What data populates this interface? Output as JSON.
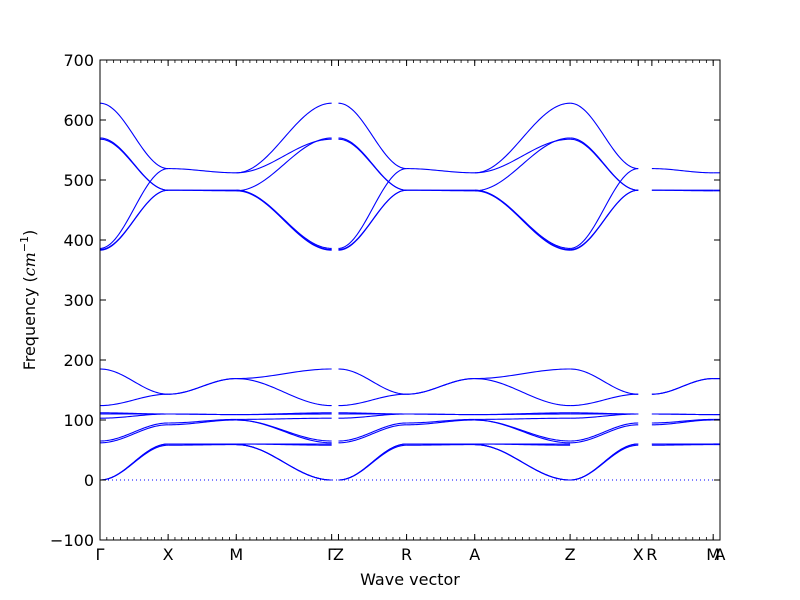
{
  "chart_data": {
    "type": "line",
    "title": "",
    "xlabel": "Wave vector",
    "ylabel_text": "Frequency (",
    "ylabel_unit": "cm",
    "ylabel_exp": "−1",
    "ylabel_close": ")",
    "ylim": [
      -100,
      700
    ],
    "yticks": [
      -100,
      0,
      100,
      200,
      300,
      400,
      500,
      600,
      700
    ],
    "xlim": [
      0,
      9.1
    ],
    "xticks": [
      {
        "label": "Γ",
        "x": 0
      },
      {
        "label": "X",
        "x": 1
      },
      {
        "label": "M",
        "x": 2
      },
      {
        "label": "Γ",
        "x": 3.4
      },
      {
        "label": "Z",
        "x": 3.5
      },
      {
        "label": "R",
        "x": 4.5
      },
      {
        "label": "A",
        "x": 5.5
      },
      {
        "label": "Z",
        "x": 6.9
      },
      {
        "label": "X",
        "x": 7.9
      },
      {
        "label": "R",
        "x": 8.1
      },
      {
        "label": "M",
        "x": 9
      },
      {
        "label": "A",
        "x": 9.1
      }
    ],
    "zero_line": {
      "y": 0,
      "style": "dotted",
      "color": "#0000ff"
    },
    "line_color": "#0000ff",
    "segments": [
      {
        "name": "Γ-X",
        "x0": 0,
        "x1": 1,
        "bands": [
          [
            628,
            519
          ],
          [
            570,
            483
          ],
          [
            568,
            483
          ],
          [
            386,
            519
          ],
          [
            384,
            483
          ],
          [
            383,
            483
          ],
          [
            185,
            143
          ],
          [
            124,
            143
          ],
          [
            112,
            110
          ],
          [
            110,
            110
          ],
          [
            103,
            110
          ],
          [
            65,
            95
          ],
          [
            62,
            92
          ],
          [
            0,
            60
          ],
          [
            0,
            60
          ],
          [
            0,
            58
          ]
        ],
        "shape": "cos"
      },
      {
        "name": "X-M",
        "x0": 1,
        "x1": 2,
        "bands": [
          [
            519,
            512
          ],
          [
            483,
            483
          ],
          [
            483,
            482
          ],
          [
            143,
            169
          ],
          [
            143,
            169
          ],
          [
            110,
            109
          ],
          [
            110,
            109
          ],
          [
            95,
            101
          ],
          [
            92,
            100
          ],
          [
            60,
            60
          ],
          [
            60,
            60
          ],
          [
            58,
            59
          ]
        ],
        "shape": "cos"
      },
      {
        "name": "M-Γ",
        "x0": 2,
        "x1": 3.4,
        "bands": [
          [
            512,
            628
          ],
          [
            512,
            568
          ],
          [
            482,
            570
          ],
          [
            483,
            386
          ],
          [
            482,
            384
          ],
          [
            483,
            383
          ],
          [
            169,
            185
          ],
          [
            169,
            124
          ],
          [
            109,
            112
          ],
          [
            109,
            110
          ],
          [
            101,
            103
          ],
          [
            100,
            65
          ],
          [
            100,
            62
          ],
          [
            60,
            60
          ],
          [
            60,
            58
          ],
          [
            59,
            0
          ],
          [
            59,
            0
          ],
          [
            59,
            0
          ]
        ],
        "shape": "cos"
      },
      {
        "name": "Z-R",
        "x0": 3.5,
        "x1": 4.5,
        "bands": [
          [
            628,
            519
          ],
          [
            570,
            483
          ],
          [
            568,
            483
          ],
          [
            386,
            519
          ],
          [
            384,
            483
          ],
          [
            383,
            483
          ],
          [
            185,
            143
          ],
          [
            124,
            143
          ],
          [
            112,
            110
          ],
          [
            110,
            110
          ],
          [
            103,
            110
          ],
          [
            65,
            95
          ],
          [
            62,
            92
          ],
          [
            0,
            60
          ],
          [
            0,
            60
          ],
          [
            0,
            58
          ]
        ],
        "shape": "cos"
      },
      {
        "name": "R-A",
        "x0": 4.5,
        "x1": 5.5,
        "bands": [
          [
            519,
            512
          ],
          [
            483,
            483
          ],
          [
            483,
            482
          ],
          [
            143,
            169
          ],
          [
            143,
            169
          ],
          [
            110,
            109
          ],
          [
            110,
            109
          ],
          [
            95,
            101
          ],
          [
            92,
            100
          ],
          [
            60,
            60
          ],
          [
            60,
            60
          ],
          [
            58,
            59
          ]
        ],
        "shape": "cos"
      },
      {
        "name": "A-Z",
        "x0": 5.5,
        "x1": 6.9,
        "bands": [
          [
            512,
            628
          ],
          [
            512,
            568
          ],
          [
            482,
            570
          ],
          [
            483,
            386
          ],
          [
            482,
            384
          ],
          [
            483,
            383
          ],
          [
            169,
            185
          ],
          [
            169,
            124
          ],
          [
            109,
            112
          ],
          [
            109,
            110
          ],
          [
            101,
            103
          ],
          [
            100,
            65
          ],
          [
            100,
            62
          ],
          [
            60,
            60
          ],
          [
            60,
            58
          ],
          [
            59,
            0
          ],
          [
            59,
            0
          ],
          [
            59,
            0
          ]
        ],
        "shape": "cos"
      },
      {
        "name": "Z-X",
        "x0": 6.9,
        "x1": 7.9,
        "bands": [
          [
            628,
            519
          ],
          [
            570,
            483
          ],
          [
            568,
            483
          ],
          [
            386,
            519
          ],
          [
            384,
            483
          ],
          [
            383,
            483
          ],
          [
            185,
            143
          ],
          [
            124,
            143
          ],
          [
            112,
            110
          ],
          [
            110,
            110
          ],
          [
            103,
            110
          ],
          [
            65,
            95
          ],
          [
            62,
            92
          ],
          [
            0,
            60
          ],
          [
            0,
            60
          ],
          [
            0,
            58
          ]
        ],
        "shape": "cos"
      },
      {
        "name": "R-M",
        "x0": 8.1,
        "x1": 9,
        "bands": [
          [
            519,
            512
          ],
          [
            483,
            483
          ],
          [
            483,
            482
          ],
          [
            143,
            169
          ],
          [
            143,
            169
          ],
          [
            110,
            109
          ],
          [
            110,
            109
          ],
          [
            95,
            101
          ],
          [
            92,
            100
          ],
          [
            60,
            60
          ],
          [
            60,
            60
          ],
          [
            58,
            59
          ]
        ],
        "shape": "cos"
      },
      {
        "name": "M-A",
        "x0": 9,
        "x1": 9.1,
        "bands": [
          [
            512,
            512
          ],
          [
            483,
            483
          ],
          [
            482,
            482
          ],
          [
            169,
            169
          ],
          [
            169,
            169
          ],
          [
            109,
            109
          ],
          [
            109,
            109
          ],
          [
            101,
            101
          ],
          [
            100,
            100
          ],
          [
            60,
            60
          ],
          [
            60,
            60
          ],
          [
            59,
            59
          ]
        ],
        "shape": "cos"
      }
    ],
    "grid": false,
    "legend": "none"
  }
}
